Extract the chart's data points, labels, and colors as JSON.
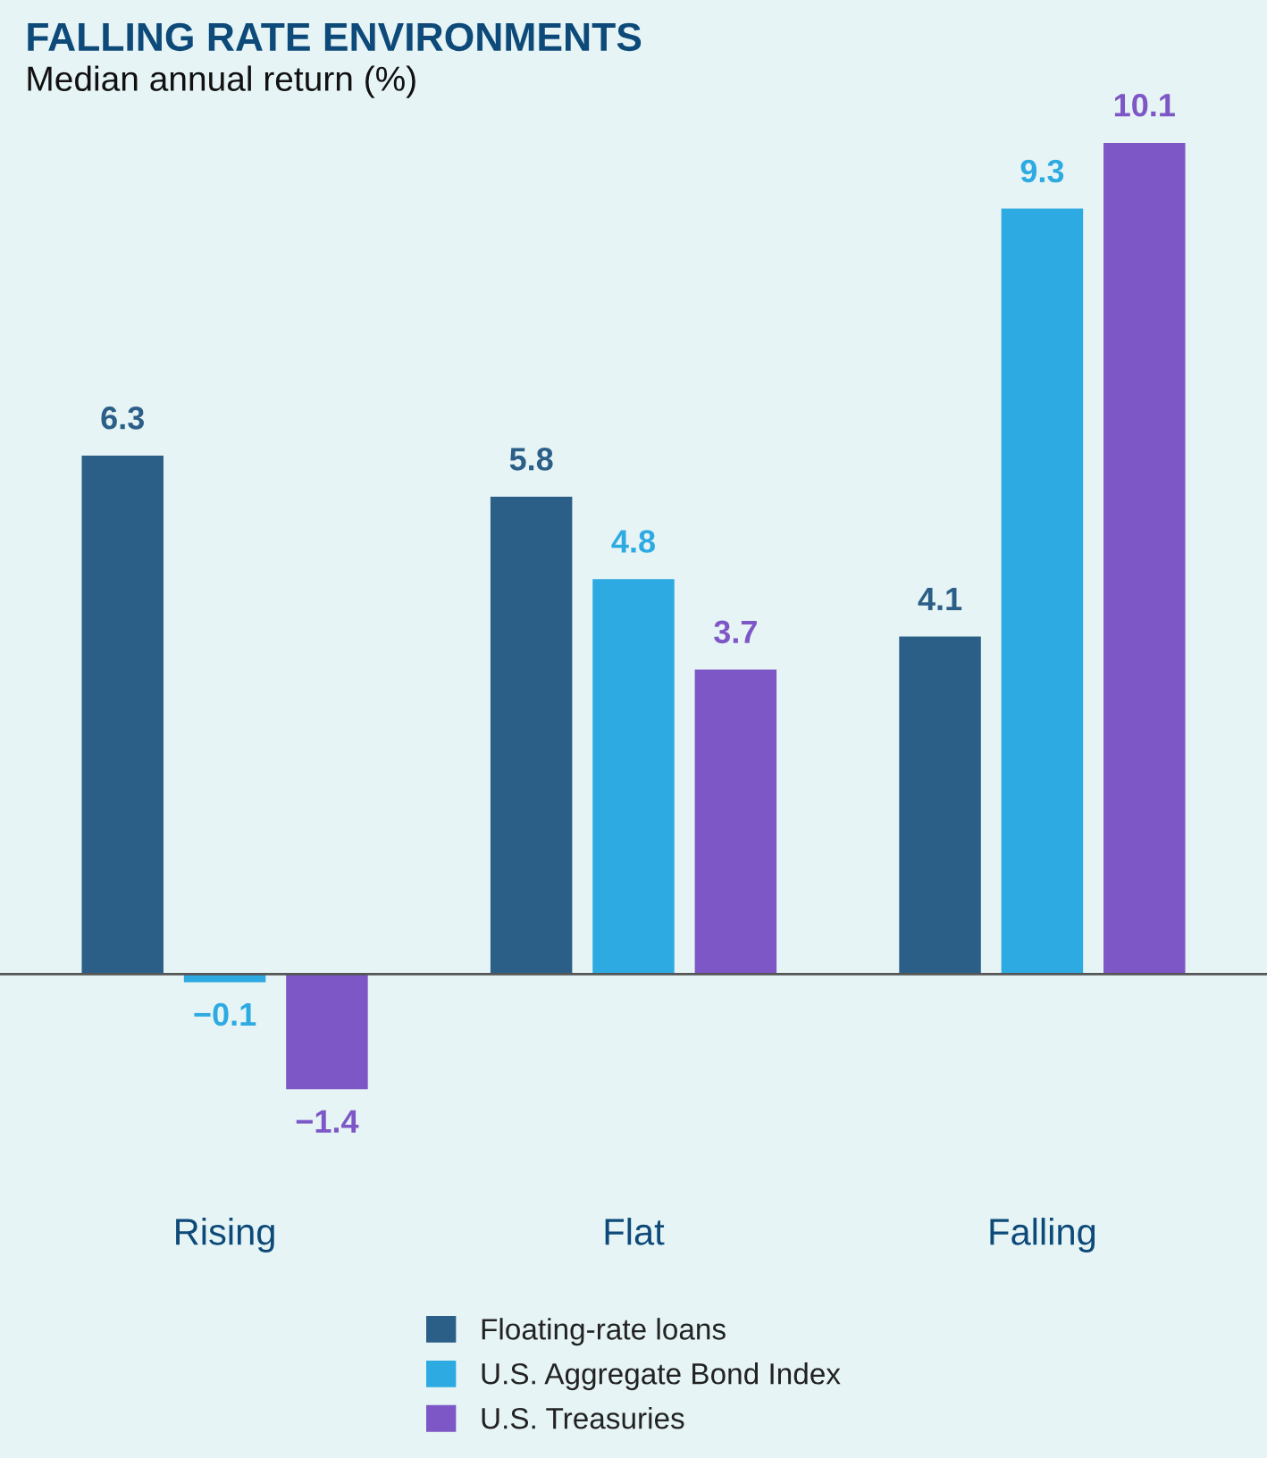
{
  "chart_data": {
    "type": "bar",
    "title": "FALLING RATE ENVIRONMENTS",
    "ylabel": "Median annual return (%)",
    "categories": [
      "Rising",
      "Flat",
      "Falling"
    ],
    "series": [
      {
        "name": "Floating-rate loans",
        "color": "#2c5f87",
        "values": [
          6.3,
          5.8,
          4.1
        ]
      },
      {
        "name": "U.S. Aggregate Bond Index",
        "color": "#2eaae2",
        "values": [
          -0.1,
          4.8,
          9.3
        ]
      },
      {
        "name": "U.S. Treasuries",
        "color": "#7e57c6",
        "values": [
          -1.4,
          3.7,
          10.1
        ]
      }
    ],
    "data_labels": true,
    "legend": "bottom",
    "grid": false
  }
}
